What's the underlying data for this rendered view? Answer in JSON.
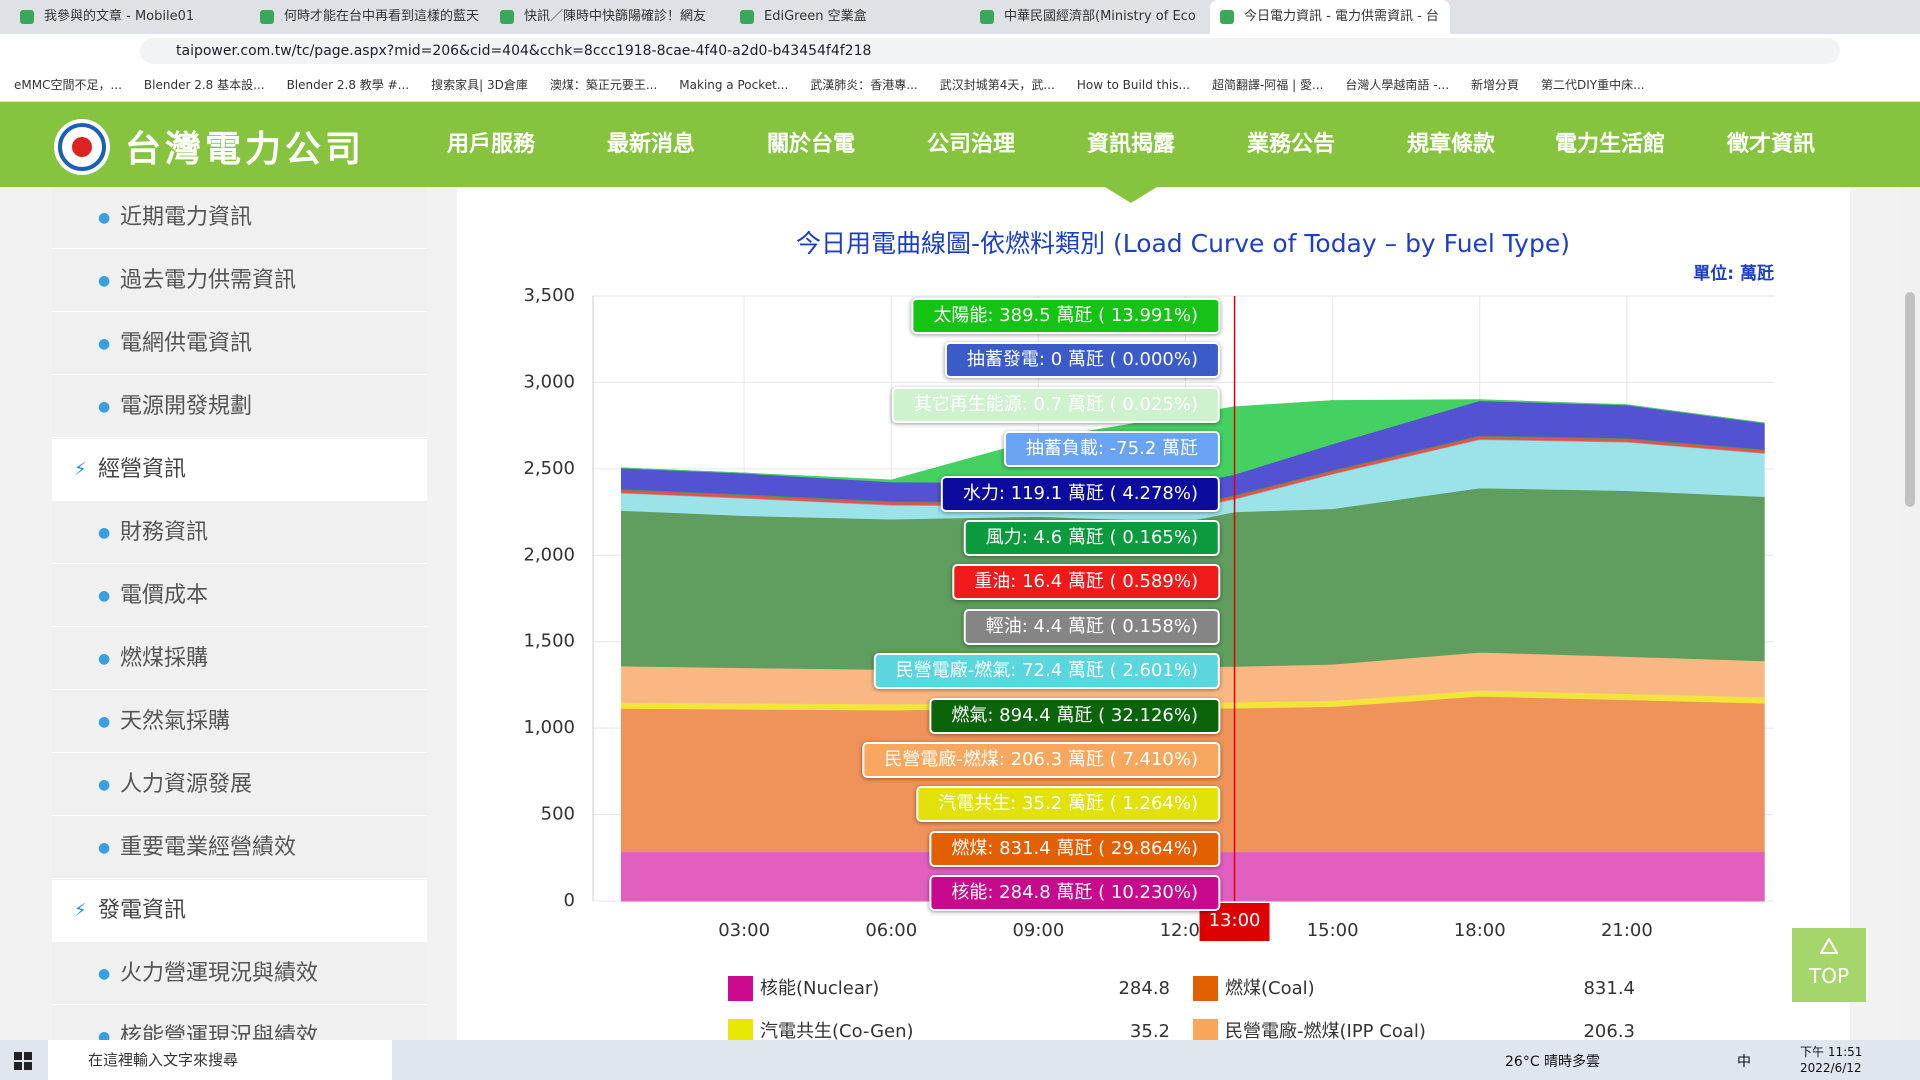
{
  "tabs": [
    "我參與的文章 - Mobile01",
    "何時才能在台中再看到這樣的藍天",
    "快訊／陳時中快篩陽確診！網友",
    "EdiGreen 空業盒",
    "中華民國經濟部(Ministry of Eco",
    "今日電力資訊 - 電力供需資訊 - 台"
  ],
  "address": "taipower.com.tw/tc/page.aspx?mid=206&cid=404&cchk=8ccc1918-8cae-4f40-a2d0-b43454f4f218",
  "bookmarks": [
    "eMMC空間不足，...",
    "Blender 2.8 基本設...",
    "Blender 2.8 教學 #...",
    "搜索家具| 3D倉庫",
    "澳煤：築正元要王...",
    "Making a Pocket...",
    "武漢肺炎：香港專...",
    "武汉封城第4天，武...",
    "How to Build this...",
    "超简翻譯-阿福 | 愛...",
    "台灣人學越南語 -...",
    "新增分頁",
    "第二代DIY重中床..."
  ],
  "site": {
    "logo": "台灣電力公司",
    "nav": [
      "用戶服務",
      "最新消息",
      "關於台電",
      "公司治理",
      "資訊揭露",
      "業務公告",
      "規章條款",
      "電力生活館",
      "徵才資訊"
    ]
  },
  "sidebar": [
    {
      "text": "近期電力資訊",
      "level": 2
    },
    {
      "text": "過去電力供需資訊",
      "level": 2
    },
    {
      "text": "電網供電資訊",
      "level": 2
    },
    {
      "text": "電源開發規劃",
      "level": 2
    },
    {
      "text": "經營資訊",
      "level": 1
    },
    {
      "text": "財務資訊",
      "level": 2
    },
    {
      "text": "電價成本",
      "level": 2
    },
    {
      "text": "燃煤採購",
      "level": 2
    },
    {
      "text": "天然氣採購",
      "level": 2
    },
    {
      "text": "人力資源發展",
      "level": 2
    },
    {
      "text": "重要電業經營績效",
      "level": 2
    },
    {
      "text": "發電資訊",
      "level": 1
    },
    {
      "text": "火力營運現況與績效",
      "level": 2
    },
    {
      "text": "核能營運現況與績效",
      "level": 2
    }
  ],
  "chart": {
    "type": "area",
    "title": "今日用電曲線圖-依燃料類別 (Load Curve of Today – by Fuel Type)",
    "unit": "單位: 萬瓩",
    "x": [
      0.5,
      3,
      6,
      9,
      12,
      13,
      15,
      18,
      21,
      23.8
    ],
    "xlim": [
      0,
      24
    ],
    "xticks": [
      {
        "value": 3,
        "label": "03:00"
      },
      {
        "value": 6,
        "label": "06:00"
      },
      {
        "value": 9,
        "label": "09:00"
      },
      {
        "value": 12,
        "label": "12:00"
      },
      {
        "value": 15,
        "label": "15:00"
      },
      {
        "value": 18,
        "label": "18:00"
      },
      {
        "value": 21,
        "label": "21:00"
      }
    ],
    "ylim": [
      0,
      3500
    ],
    "yticks": [
      0,
      500,
      {
        "value": 1000,
        "label": "1,000"
      },
      {
        "value": 1500,
        "label": "1,500"
      },
      {
        "value": 2000,
        "label": "2,000"
      },
      {
        "value": 2500,
        "label": "2,500"
      },
      {
        "value": 3000,
        "label": "3,000"
      },
      {
        "value": 3500,
        "label": "3,500"
      }
    ],
    "grid": true,
    "series": [
      {
        "name": "核能",
        "color": "#e05fbf",
        "values": [
          285,
          285,
          285,
          285,
          285,
          284.8,
          285,
          285,
          285,
          285
        ]
      },
      {
        "name": "燃煤",
        "color": "#f0935a",
        "values": [
          830,
          825,
          820,
          830,
          830,
          831.4,
          840,
          900,
          880,
          860
        ]
      },
      {
        "name": "汽電共生",
        "color": "#f2e43a",
        "values": [
          35,
          35,
          35,
          35,
          35,
          35.2,
          35,
          35,
          35,
          35
        ]
      },
      {
        "name": "民營電廠-燃煤",
        "color": "#f9b883",
        "values": [
          210,
          205,
          200,
          205,
          205,
          206.3,
          210,
          220,
          215,
          210
        ]
      },
      {
        "name": "燃氣",
        "color": "#5f9e5f",
        "values": [
          900,
          880,
          870,
          870,
          840,
          894.4,
          900,
          950,
          960,
          950
        ]
      },
      {
        "name": "民營電廠-燃氣",
        "color": "#9be3e8",
        "values": [
          100,
          100,
          80,
          60,
          72,
          72.4,
          200,
          280,
          280,
          250
        ]
      },
      {
        "name": "輕油",
        "color": "#a0a0a0",
        "values": [
          4,
          4,
          4,
          4,
          4,
          4.4,
          4,
          4,
          4,
          4
        ]
      },
      {
        "name": "重油",
        "color": "#e85050",
        "values": [
          16,
          16,
          16,
          16,
          16,
          16.4,
          16,
          16,
          16,
          16
        ]
      },
      {
        "name": "風力",
        "color": "#2f9e50",
        "values": [
          5,
          5,
          5,
          5,
          5,
          4.6,
          5,
          5,
          5,
          5
        ]
      },
      {
        "name": "水力",
        "color": "#5252d2",
        "values": [
          120,
          120,
          110,
          110,
          119,
          119.1,
          150,
          200,
          190,
          150
        ]
      },
      {
        "name": "太陽能",
        "color": "#44d162",
        "values": [
          0,
          0,
          10,
          250,
          400,
          389.5,
          250,
          5,
          0,
          0
        ]
      }
    ],
    "cursor": {
      "x": 13,
      "label": "13:00"
    },
    "tooltips": [
      {
        "text": "太陽能: 389.5 萬瓩 ( 13.991%)",
        "color": "#14c314"
      },
      {
        "text": "抽蓄發電: 0 萬瓩 ( 0.000%)",
        "color": "#3a5bc8"
      },
      {
        "text": "其它再生能源: 0.7 萬瓩 ( 0.025%)",
        "color": "#cdf2cd"
      },
      {
        "text": "抽蓄負載: -75.2 萬瓩",
        "color": "#6aa3f2"
      },
      {
        "text": "水力: 119.1 萬瓩 ( 4.278%)",
        "color": "#0b0b9e"
      },
      {
        "text": "風力: 4.6 萬瓩 ( 0.165%)",
        "color": "#0b9b3e"
      },
      {
        "text": "重油: 16.4 萬瓩 ( 0.589%)",
        "color": "#f01a1a"
      },
      {
        "text": "輕油: 4.4 萬瓩 ( 0.158%)",
        "color": "#858585"
      },
      {
        "text": "民營電廠-燃氣: 72.4 萬瓩 ( 2.601%)",
        "color": "#5ad6de"
      },
      {
        "text": "燃氣: 894.4 萬瓩 ( 32.126%)",
        "color": "#0a650a"
      },
      {
        "text": "民營電廠-燃煤: 206.3 萬瓩 ( 7.410%)",
        "color": "#f8a85e"
      },
      {
        "text": "汽電共生: 35.2 萬瓩 ( 1.264%)",
        "color": "#e2e20a"
      },
      {
        "text": "燃煤: 831.4 萬瓩 ( 29.864%)",
        "color": "#e26002"
      },
      {
        "text": "核能: 284.8 萬瓩 ( 10.230%)",
        "color": "#c8098d"
      }
    ]
  },
  "legend": [
    {
      "name": "核能(Nuclear)",
      "value": 284.8,
      "color": "#cc0a8f"
    },
    {
      "name": "燃煤(Coal)",
      "value": 831.4,
      "color": "#e06000"
    },
    {
      "name": "汽電共生(Co-Gen)",
      "value": 35.2,
      "color": "#e8e800"
    },
    {
      "name": "民營電廠-燃煤(IPP Coal)",
      "value": 206.3,
      "color": "#f9a65a"
    }
  ],
  "top_button": "TOP",
  "taskbar": {
    "search": "在這裡輸入文字來搜尋",
    "weather": "26°C 晴時多雲",
    "ime": "中",
    "time": "下午 11:51",
    "date": "2022/6/12"
  }
}
